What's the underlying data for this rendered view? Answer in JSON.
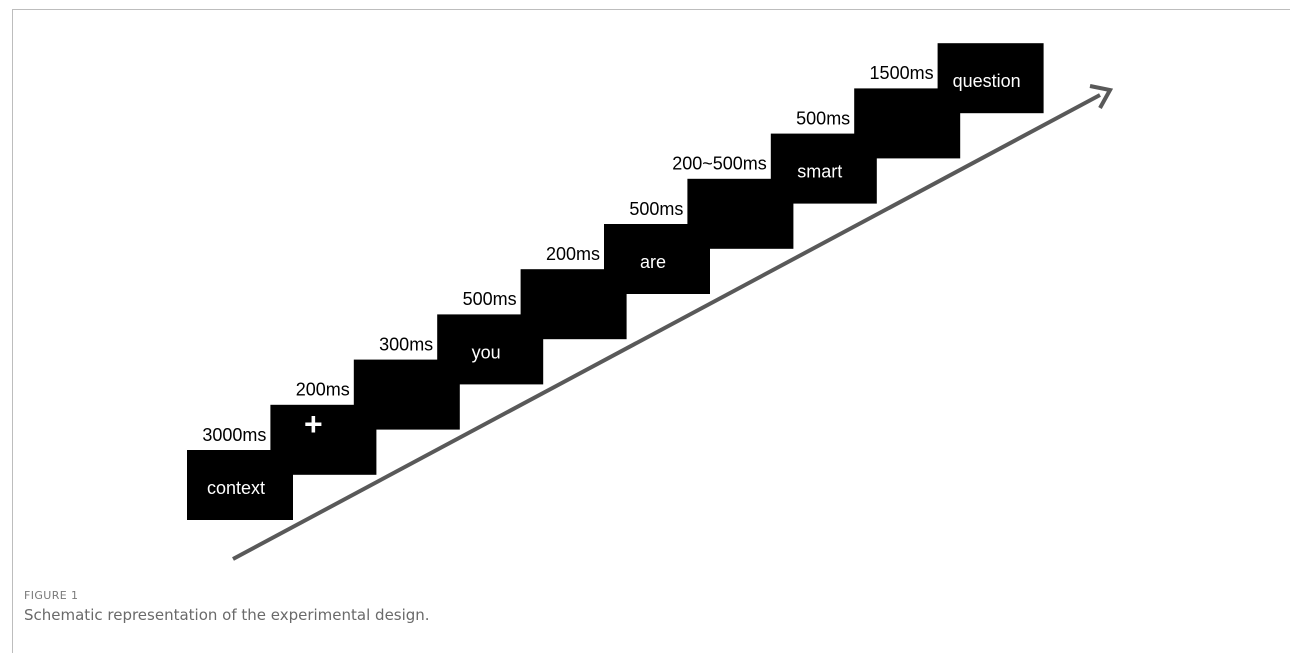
{
  "diagram": {
    "steps": [
      {
        "stimulus": "context",
        "duration": "3000ms"
      },
      {
        "stimulus": "+",
        "duration": "200ms"
      },
      {
        "stimulus": "",
        "duration": "300ms"
      },
      {
        "stimulus": "you",
        "duration": "500ms"
      },
      {
        "stimulus": "",
        "duration": "200ms"
      },
      {
        "stimulus": "are",
        "duration": "500ms"
      },
      {
        "stimulus": "",
        "duration": "200~500ms"
      },
      {
        "stimulus": "smart",
        "duration": "500ms"
      },
      {
        "stimulus": "",
        "duration": "1500ms"
      },
      {
        "stimulus": "question",
        "duration": ""
      }
    ],
    "colors": {
      "screen": "#000000",
      "screen_text": "#ffffff",
      "label_text": "#000000",
      "arrow": "#595959"
    }
  },
  "figure": {
    "label": "FIGURE 1",
    "caption": "Schematic representation of the experimental design."
  }
}
